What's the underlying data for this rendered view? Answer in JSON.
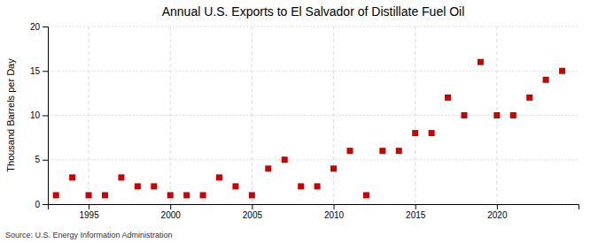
{
  "chart_data": {
    "type": "scatter",
    "title": "Annual U.S. Exports to El Salvador of Distillate Fuel Oil",
    "ylabel": "Thousand Barrels per Day",
    "annotation": "Source: U.S. Energy Information Administration",
    "x": [
      1993,
      1994,
      1995,
      1996,
      1997,
      1998,
      1999,
      2000,
      2001,
      2002,
      2003,
      2004,
      2005,
      2006,
      2007,
      2008,
      2009,
      2010,
      2011,
      2012,
      2013,
      2014,
      2015,
      2016,
      2017,
      2018,
      2019,
      2020,
      2021,
      2022,
      2023,
      2024
    ],
    "values": [
      1,
      3,
      1,
      1,
      3,
      2,
      2,
      1,
      1,
      1,
      3,
      2,
      1,
      4,
      5,
      2,
      2,
      4,
      6,
      1,
      6,
      6,
      8,
      8,
      12,
      10,
      16,
      10,
      10,
      12,
      14,
      15
    ],
    "color": "#cc0000",
    "marker": "square",
    "xlim": [
      1992.5,
      2025
    ],
    "xticks": [
      1995,
      2000,
      2005,
      2010,
      2015,
      2020
    ],
    "ylim": [
      0,
      20
    ],
    "yticks": [
      0,
      5,
      10,
      15,
      20
    ],
    "grid": true
  }
}
